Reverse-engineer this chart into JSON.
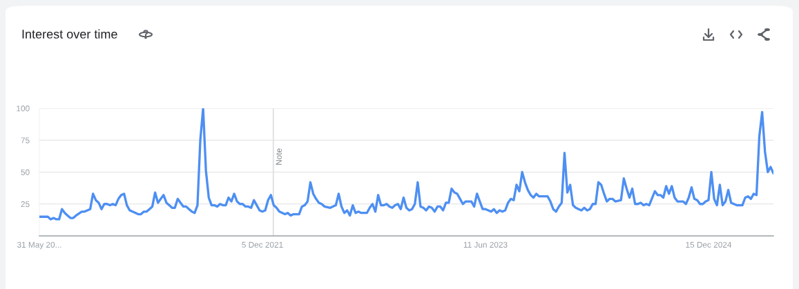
{
  "chart_data": {
    "type": "line",
    "title": "Interest over time",
    "x": [
      "2020-05-31",
      "2020-06-21",
      "2020-06-28",
      "2020-07-05",
      "2020-07-12",
      "2020-07-19",
      "2020-07-26",
      "2020-08-02",
      "2020-08-09",
      "2020-08-16",
      "2020-08-23",
      "2020-08-30",
      "2020-09-13",
      "2020-09-20",
      "2020-09-27",
      "2020-10-04",
      "2020-10-11",
      "2020-10-18",
      "2020-10-25",
      "2020-11-01",
      "2020-11-08",
      "2020-11-15",
      "2020-11-22",
      "2020-11-29",
      "2020-12-06",
      "2020-12-13",
      "2020-12-20",
      "2020-12-27",
      "2021-01-03",
      "2021-01-10",
      "2021-01-17",
      "2021-01-31",
      "2021-02-07",
      "2021-02-14",
      "2021-02-21",
      "2021-02-28",
      "2021-03-07",
      "2021-03-14",
      "2021-03-21",
      "2021-03-28",
      "2021-04-04",
      "2021-04-11",
      "2021-04-18",
      "2021-04-25",
      "2021-05-02",
      "2021-05-09",
      "2021-05-16",
      "2021-05-23",
      "2021-05-30",
      "2021-06-06",
      "2021-06-13",
      "2021-06-20",
      "2021-06-27",
      "2021-07-04",
      "2021-07-11",
      "2021-07-18",
      "2021-07-25",
      "2021-08-01",
      "2021-08-08",
      "2021-08-15",
      "2021-08-22",
      "2021-08-29",
      "2021-09-05",
      "2021-09-12",
      "2021-09-19",
      "2021-09-26",
      "2021-10-03",
      "2021-10-10",
      "2021-10-17",
      "2021-10-24",
      "2021-10-31",
      "2021-11-07",
      "2021-11-14",
      "2021-11-21",
      "2021-11-28",
      "2021-12-05",
      "2021-12-12",
      "2021-12-19",
      "2021-12-26",
      "2022-01-02",
      "2022-01-09",
      "2022-01-16",
      "2022-01-30",
      "2022-02-06",
      "2022-02-13",
      "2022-02-20",
      "2022-03-06",
      "2022-03-13",
      "2022-03-20",
      "2022-03-27",
      "2022-04-03",
      "2022-04-10",
      "2022-04-17",
      "2022-04-24",
      "2022-05-01",
      "2022-05-08",
      "2022-05-22",
      "2022-06-05",
      "2022-06-12",
      "2022-06-19",
      "2022-06-26",
      "2022-07-03",
      "2022-07-10",
      "2022-07-17",
      "2022-07-24",
      "2022-07-31",
      "2022-08-07",
      "2022-08-21",
      "2022-08-28",
      "2022-09-04",
      "2022-09-11",
      "2022-09-18",
      "2022-09-25",
      "2022-10-02",
      "2022-10-09",
      "2022-10-16",
      "2022-10-23",
      "2022-10-30",
      "2022-11-06",
      "2022-11-13",
      "2022-11-20",
      "2022-11-27",
      "2022-12-04",
      "2022-12-11",
      "2022-12-18",
      "2022-12-25",
      "2023-01-01",
      "2023-01-08",
      "2023-01-15",
      "2023-01-22",
      "2023-01-29",
      "2023-02-05",
      "2023-02-12",
      "2023-02-19",
      "2023-02-26",
      "2023-03-05",
      "2023-03-12",
      "2023-03-19",
      "2023-03-26",
      "2023-04-02",
      "2023-04-09",
      "2023-04-16",
      "2023-04-23",
      "2023-05-07",
      "2023-05-14",
      "2023-05-21",
      "2023-05-28",
      "2023-06-04",
      "2023-06-11",
      "2023-06-25",
      "2023-07-02",
      "2023-07-09",
      "2023-07-16",
      "2023-07-23",
      "2023-07-30",
      "2023-08-06",
      "2023-08-13",
      "2023-08-20",
      "2023-08-27",
      "2023-09-03",
      "2023-09-10",
      "2023-09-17",
      "2023-09-24",
      "2023-10-01",
      "2023-10-08",
      "2023-10-15",
      "2023-10-22",
      "2023-11-05",
      "2023-11-12",
      "2023-11-19",
      "2023-11-26",
      "2023-12-03",
      "2023-12-10",
      "2023-12-17",
      "2023-12-24",
      "2023-12-31",
      "2024-01-07",
      "2024-01-14",
      "2024-01-21",
      "2024-01-28",
      "2024-02-04",
      "2024-02-11",
      "2024-02-18",
      "2024-02-25",
      "2024-03-03",
      "2024-03-10",
      "2024-03-17",
      "2024-03-24",
      "2024-03-31",
      "2024-04-07",
      "2024-04-14",
      "2024-04-21",
      "2024-04-28",
      "2024-05-12",
      "2024-05-19",
      "2024-05-26",
      "2024-06-02",
      "2024-06-09",
      "2024-06-16",
      "2024-06-23",
      "2024-06-30",
      "2024-07-07",
      "2024-07-14",
      "2024-07-21",
      "2024-08-04",
      "2024-08-11",
      "2024-08-18",
      "2024-08-25",
      "2024-09-01",
      "2024-09-08",
      "2024-09-15",
      "2024-09-22",
      "2024-09-29",
      "2024-10-13",
      "2024-10-20",
      "2024-10-27",
      "2024-11-03",
      "2024-11-10",
      "2024-11-17",
      "2024-11-24",
      "2024-12-01",
      "2024-12-08",
      "2024-12-15",
      "2024-12-22",
      "2024-12-29",
      "2025-01-05",
      "2025-01-12",
      "2025-01-19",
      "2025-01-26",
      "2025-02-02",
      "2025-02-09",
      "2025-02-16",
      "2025-02-23",
      "2025-03-09",
      "2025-03-16",
      "2025-03-23",
      "2025-03-30",
      "2025-04-06",
      "2025-04-13",
      "2025-04-20",
      "2025-04-27",
      "2025-05-04",
      "2025-05-11",
      "2025-05-18",
      "2025-05-25"
    ],
    "series": [
      {
        "color": "#4d8ff2",
        "values": [
          15,
          15,
          13,
          14,
          13,
          13,
          21,
          18,
          16,
          14,
          14,
          16,
          19,
          19,
          20,
          21,
          33,
          28,
          26,
          21,
          25,
          25,
          24,
          25,
          24,
          29,
          32,
          33,
          24,
          20,
          19,
          17,
          17,
          19,
          19,
          21,
          23,
          34,
          26,
          29,
          32,
          26,
          24,
          22,
          22,
          29,
          26,
          23,
          23,
          21,
          19,
          18,
          24,
          75,
          100,
          51,
          30,
          24,
          24,
          23,
          25,
          24,
          24,
          30,
          27,
          33,
          27,
          25,
          25,
          23,
          23,
          22,
          28,
          24,
          20,
          19,
          20,
          28,
          32,
          24,
          22,
          19,
          17,
          18,
          16,
          17,
          17,
          23,
          24,
          27,
          42,
          33,
          29,
          26,
          25,
          23,
          22,
          24,
          33,
          23,
          18,
          20,
          16,
          24,
          18,
          19,
          18,
          18,
          22,
          25,
          19,
          32,
          24,
          24,
          25,
          23,
          22,
          24,
          25,
          21,
          30,
          22,
          20,
          21,
          25,
          42,
          23,
          22,
          20,
          23,
          22,
          19,
          23,
          23,
          20,
          26,
          26,
          37,
          34,
          33,
          29,
          25,
          27,
          27,
          23,
          33,
          27,
          21,
          21,
          19,
          21,
          18,
          20,
          19,
          20,
          26,
          29,
          28,
          40,
          35,
          50,
          42,
          36,
          32,
          30,
          33,
          31,
          31,
          31,
          27,
          21,
          19,
          23,
          26,
          65,
          34,
          40,
          24,
          22,
          21,
          20,
          22,
          20,
          21,
          25,
          25,
          42,
          40,
          33,
          27,
          29,
          29,
          27,
          28,
          45,
          37,
          30,
          37,
          25,
          25,
          26,
          24,
          25,
          24,
          35,
          32,
          32,
          30,
          39,
          33,
          39,
          30,
          27,
          27,
          25,
          30,
          38,
          29,
          28,
          25,
          25,
          27,
          28,
          50,
          29,
          24,
          40,
          24,
          27,
          36,
          26,
          25,
          24,
          24,
          30,
          31,
          29,
          33,
          32,
          78,
          97,
          66,
          50,
          54,
          49
        ]
      }
    ],
    "xlim": [
      "2020-05-31",
      "2025-05-25"
    ],
    "xticks": [
      {
        "value": "2020-05-31",
        "label": "31 May 20..."
      },
      {
        "value": "2021-12-05",
        "label": "5 Dec 2021"
      },
      {
        "value": "2023-06-11",
        "label": "11 Jun 2023"
      },
      {
        "value": "2024-12-15",
        "label": "15 Dec 2024"
      }
    ],
    "ylim": [
      0,
      100
    ],
    "yticks": [
      25,
      50,
      75,
      100
    ],
    "grid": "y",
    "ref_lines": [
      {
        "axis": "x",
        "value": "2022-01-01",
        "label": "Note",
        "color": "#dadce0"
      }
    ]
  }
}
